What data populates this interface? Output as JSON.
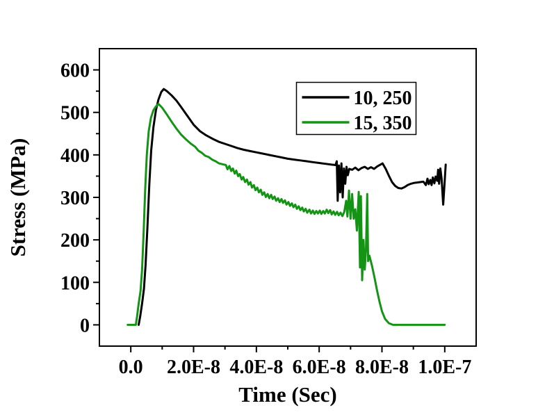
{
  "figure": {
    "background": "#ffffff",
    "axis_color": "#000000",
    "x_axis_title": "Time (Sec)",
    "y_axis_title": "Stress (MPa)"
  },
  "chart_data": {
    "type": "line",
    "title": "",
    "xlabel": "Time (Sec)",
    "ylabel": "Stress (MPa)",
    "x_values_unit": "1e-8 seconds",
    "xlim_e8": [
      -1,
      11
    ],
    "ylim": [
      -50,
      650
    ],
    "grid": false,
    "x_ticks_major": {
      "values_e8": [
        0,
        2,
        4,
        6,
        8,
        10
      ],
      "labels": [
        "0.0",
        "2.0E-8",
        "4.0E-8",
        "6.0E-8",
        "8.0E-8",
        "1.0E-7"
      ]
    },
    "x_ticks_minor_e8": [
      1,
      3,
      5,
      7,
      9
    ],
    "y_ticks_major": {
      "values": [
        0,
        100,
        200,
        300,
        400,
        500,
        600
      ],
      "labels": [
        "0",
        "100",
        "200",
        "300",
        "400",
        "500",
        "600"
      ]
    },
    "y_ticks_minor": [
      50,
      150,
      250,
      350,
      450,
      550
    ],
    "legend": {
      "position": "upper-right",
      "border_color": "#000000",
      "background": "#ffffff",
      "entries": [
        {
          "label": "10, 250",
          "color": "#000000"
        },
        {
          "label": "15, 350",
          "color": "#149414"
        }
      ]
    },
    "series": [
      {
        "name": "10, 250",
        "color": "#000000",
        "stroke_width": 3,
        "points": [
          [
            0.25,
            0
          ],
          [
            0.3,
            20
          ],
          [
            0.36,
            50
          ],
          [
            0.42,
            85
          ],
          [
            0.47,
            140
          ],
          [
            0.53,
            230
          ],
          [
            0.59,
            330
          ],
          [
            0.65,
            410
          ],
          [
            0.72,
            465
          ],
          [
            0.8,
            505
          ],
          [
            0.88,
            530
          ],
          [
            0.97,
            548
          ],
          [
            1.05,
            555
          ],
          [
            1.15,
            550
          ],
          [
            1.3,
            540
          ],
          [
            1.45,
            528
          ],
          [
            1.6,
            513
          ],
          [
            1.8,
            492
          ],
          [
            2.0,
            471
          ],
          [
            2.2,
            456
          ],
          [
            2.4,
            446
          ],
          [
            2.6,
            438
          ],
          [
            2.8,
            431
          ],
          [
            3.0,
            426
          ],
          [
            3.2,
            421
          ],
          [
            3.4,
            416
          ],
          [
            3.6,
            412
          ],
          [
            3.8,
            409
          ],
          [
            4.0,
            406
          ],
          [
            4.2,
            403
          ],
          [
            4.4,
            400
          ],
          [
            4.6,
            397
          ],
          [
            4.8,
            394
          ],
          [
            5.0,
            391
          ],
          [
            5.2,
            389
          ],
          [
            5.4,
            387
          ],
          [
            5.6,
            385
          ],
          [
            5.8,
            383
          ],
          [
            6.0,
            381
          ],
          [
            6.2,
            379
          ],
          [
            6.4,
            377
          ],
          [
            6.52,
            376
          ],
          [
            6.56,
            385
          ],
          [
            6.59,
            292
          ],
          [
            6.63,
            375
          ],
          [
            6.67,
            312
          ],
          [
            6.71,
            380
          ],
          [
            6.75,
            300
          ],
          [
            6.79,
            368
          ],
          [
            6.83,
            332
          ],
          [
            6.87,
            372
          ],
          [
            6.91,
            352
          ],
          [
            6.96,
            367
          ],
          [
            7.05,
            365
          ],
          [
            7.15,
            370
          ],
          [
            7.25,
            364
          ],
          [
            7.35,
            369
          ],
          [
            7.45,
            372
          ],
          [
            7.55,
            367
          ],
          [
            7.65,
            371
          ],
          [
            7.75,
            367
          ],
          [
            7.85,
            373
          ],
          [
            7.95,
            377
          ],
          [
            8.02,
            380
          ],
          [
            8.12,
            367
          ],
          [
            8.22,
            351
          ],
          [
            8.32,
            336
          ],
          [
            8.42,
            327
          ],
          [
            8.52,
            322
          ],
          [
            8.62,
            321
          ],
          [
            8.72,
            324
          ],
          [
            8.82,
            329
          ],
          [
            8.92,
            332
          ],
          [
            9.02,
            334
          ],
          [
            9.12,
            335
          ],
          [
            9.22,
            336
          ],
          [
            9.32,
            337
          ],
          [
            9.4,
            329
          ],
          [
            9.45,
            344
          ],
          [
            9.49,
            331
          ],
          [
            9.54,
            341
          ],
          [
            9.58,
            329
          ],
          [
            9.62,
            347
          ],
          [
            9.67,
            333
          ],
          [
            9.71,
            349
          ],
          [
            9.76,
            339
          ],
          [
            9.79,
            365
          ],
          [
            9.82,
            332
          ],
          [
            9.86,
            368
          ],
          [
            9.9,
            344
          ],
          [
            9.95,
            283
          ],
          [
            9.99,
            329
          ],
          [
            10.03,
            377
          ]
        ]
      },
      {
        "name": "15, 350",
        "color": "#149414",
        "stroke_width": 3,
        "points": [
          [
            -0.1,
            0
          ],
          [
            0.16,
            0
          ],
          [
            0.2,
            20
          ],
          [
            0.25,
            50
          ],
          [
            0.31,
            80
          ],
          [
            0.36,
            130
          ],
          [
            0.41,
            220
          ],
          [
            0.46,
            320
          ],
          [
            0.51,
            400
          ],
          [
            0.57,
            455
          ],
          [
            0.64,
            487
          ],
          [
            0.72,
            505
          ],
          [
            0.8,
            514
          ],
          [
            0.88,
            520
          ],
          [
            1.0,
            511
          ],
          [
            1.15,
            495
          ],
          [
            1.3,
            478
          ],
          [
            1.45,
            462
          ],
          [
            1.6,
            448
          ],
          [
            1.75,
            437
          ],
          [
            1.9,
            427
          ],
          [
            2.05,
            419
          ],
          [
            2.15,
            410
          ],
          [
            2.26,
            405
          ],
          [
            2.37,
            398
          ],
          [
            2.48,
            395
          ],
          [
            2.59,
            389
          ],
          [
            2.7,
            385
          ],
          [
            2.81,
            380
          ],
          [
            2.92,
            378
          ],
          [
            3.03,
            376
          ],
          [
            3.08,
            366
          ],
          [
            3.14,
            374
          ],
          [
            3.2,
            362
          ],
          [
            3.25,
            368
          ],
          [
            3.31,
            356
          ],
          [
            3.36,
            363
          ],
          [
            3.42,
            350
          ],
          [
            3.47,
            355
          ],
          [
            3.53,
            342
          ],
          [
            3.58,
            348
          ],
          [
            3.64,
            336
          ],
          [
            3.7,
            342
          ],
          [
            3.75,
            330
          ],
          [
            3.81,
            336
          ],
          [
            3.86,
            323
          ],
          [
            3.92,
            329
          ],
          [
            3.97,
            317
          ],
          [
            4.03,
            323
          ],
          [
            4.08,
            312
          ],
          [
            4.14,
            318
          ],
          [
            4.19,
            306
          ],
          [
            4.25,
            312
          ],
          [
            4.3,
            301
          ],
          [
            4.36,
            308
          ],
          [
            4.41,
            298
          ],
          [
            4.47,
            306
          ],
          [
            4.52,
            296
          ],
          [
            4.58,
            302
          ],
          [
            4.63,
            292
          ],
          [
            4.69,
            298
          ],
          [
            4.74,
            289
          ],
          [
            4.8,
            296
          ],
          [
            4.85,
            287
          ],
          [
            4.91,
            293
          ],
          [
            4.96,
            283
          ],
          [
            5.02,
            289
          ],
          [
            5.07,
            280
          ],
          [
            5.13,
            286
          ],
          [
            5.18,
            277
          ],
          [
            5.24,
            283
          ],
          [
            5.29,
            273
          ],
          [
            5.35,
            279
          ],
          [
            5.4,
            270
          ],
          [
            5.46,
            276
          ],
          [
            5.51,
            267
          ],
          [
            5.57,
            273
          ],
          [
            5.62,
            264
          ],
          [
            5.69,
            271
          ],
          [
            5.74,
            262
          ],
          [
            5.8,
            269
          ],
          [
            5.85,
            261
          ],
          [
            5.91,
            268
          ],
          [
            5.96,
            262
          ],
          [
            6.02,
            269
          ],
          [
            6.07,
            261
          ],
          [
            6.13,
            268
          ],
          [
            6.18,
            262
          ],
          [
            6.24,
            271
          ],
          [
            6.29,
            263
          ],
          [
            6.35,
            270
          ],
          [
            6.4,
            260
          ],
          [
            6.46,
            267
          ],
          [
            6.51,
            259
          ],
          [
            6.57,
            266
          ],
          [
            6.62,
            258
          ],
          [
            6.68,
            264
          ],
          [
            6.74,
            256
          ],
          [
            6.8,
            266
          ],
          [
            6.86,
            292
          ],
          [
            6.9,
            255
          ],
          [
            6.95,
            316
          ],
          [
            7.0,
            250
          ],
          [
            7.05,
            308
          ],
          [
            7.1,
            250
          ],
          [
            7.15,
            272
          ],
          [
            7.2,
            222
          ],
          [
            7.26,
            313
          ],
          [
            7.3,
            135
          ],
          [
            7.33,
            303
          ],
          [
            7.37,
            105
          ],
          [
            7.41,
            200
          ],
          [
            7.45,
            130
          ],
          [
            7.49,
            176
          ],
          [
            7.53,
            308
          ],
          [
            7.56,
            150
          ],
          [
            7.6,
            163
          ],
          [
            7.68,
            140
          ],
          [
            7.76,
            112
          ],
          [
            7.84,
            82
          ],
          [
            7.92,
            55
          ],
          [
            8.0,
            32
          ],
          [
            8.1,
            14
          ],
          [
            8.22,
            4
          ],
          [
            8.35,
            0
          ],
          [
            9.0,
            0
          ],
          [
            10.0,
            0
          ]
        ]
      }
    ]
  }
}
